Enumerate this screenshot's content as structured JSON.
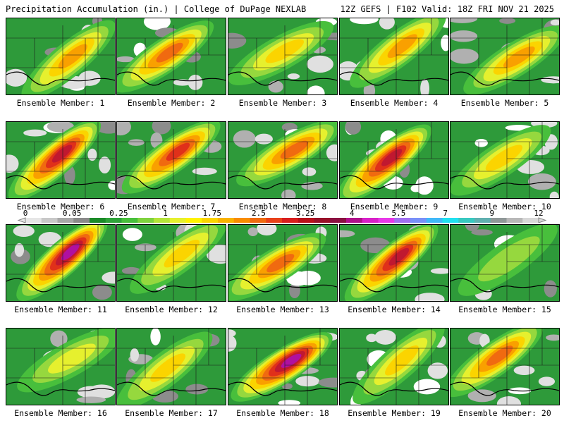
{
  "header": {
    "title": "Precipitation Accumulation (in.) | College of DuPage NEXLAB",
    "run_info": "12Z GEFS | F102 Valid: 18Z FRI NOV 21 2025"
  },
  "panels": [
    {
      "label": "Ensemble Member: 1",
      "maxband": 5
    },
    {
      "label": "Ensemble Member: 2",
      "maxband": 6
    },
    {
      "label": "Ensemble Member: 3",
      "maxband": 4
    },
    {
      "label": "Ensemble Member: 4",
      "maxband": 5
    },
    {
      "label": "Ensemble Member: 5",
      "maxband": 5
    },
    {
      "label": "Ensemble Member: 6",
      "maxband": 8
    },
    {
      "label": "Ensemble Member: 7",
      "maxband": 7
    },
    {
      "label": "Ensemble Member: 8",
      "maxband": 6
    },
    {
      "label": "Ensemble Member: 9",
      "maxband": 8
    },
    {
      "label": "Ensemble Member: 10",
      "maxband": 4
    },
    {
      "label": "Ensemble Member: 11",
      "maxband": 9
    },
    {
      "label": "Ensemble Member: 12",
      "maxband": 4
    },
    {
      "label": "Ensemble Member: 13",
      "maxband": 6
    },
    {
      "label": "Ensemble Member: 14",
      "maxband": 8
    },
    {
      "label": "Ensemble Member: 15",
      "maxband": 2
    },
    {
      "label": "Ensemble Member: 16",
      "maxband": 3
    },
    {
      "label": "Ensemble Member: 17",
      "maxband": 4
    },
    {
      "label": "Ensemble Member: 18",
      "maxband": 9
    },
    {
      "label": "Ensemble Member: 19",
      "maxband": 4
    },
    {
      "label": "Ensemble Member: 20",
      "maxband": 6
    }
  ],
  "colorbar": {
    "labels": [
      "0",
      "0.05",
      "0.25",
      "1",
      "1.75",
      "2.5",
      "3.25",
      "4",
      "5.5",
      "7",
      "9",
      "12"
    ],
    "colors": [
      "#e6e6e6",
      "#c8c8c8",
      "#a8a8a8",
      "#8a8a8a",
      "#1b8a28",
      "#2fa33a",
      "#48bf3c",
      "#7fd23e",
      "#b4e43a",
      "#e6f02e",
      "#fff200",
      "#fbd400",
      "#f9b200",
      "#f88c00",
      "#f06a10",
      "#e8401a",
      "#d81e1e",
      "#b8101a",
      "#981028",
      "#8a1040",
      "#b0108a",
      "#d820c8",
      "#e838e8",
      "#a070f0",
      "#7890f8",
      "#40b8f8",
      "#20e0f0",
      "#38c8c0",
      "#60b0b0",
      "#909898",
      "#b8b8b8",
      "#d8d8d8"
    ]
  }
}
